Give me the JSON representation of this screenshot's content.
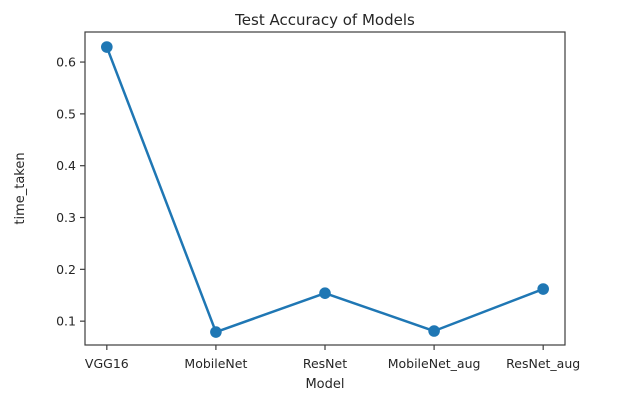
{
  "chart_data": {
    "type": "line",
    "title": "Test Accuracy of Models",
    "xlabel": "Model",
    "ylabel": "time_taken",
    "categories": [
      "VGG16",
      "MobileNet",
      "ResNet",
      "MobileNet_aug",
      "ResNet_aug"
    ],
    "series": [
      {
        "name": "time_taken",
        "values": [
          0.629,
          0.079,
          0.154,
          0.081,
          0.162
        ]
      }
    ],
    "yticks": [
      0.1,
      0.2,
      0.3,
      0.4,
      0.5,
      0.6
    ],
    "ylim": [
      0.054,
      0.658
    ],
    "grid": false,
    "legend_position": "none",
    "line_color": "#1f77b4",
    "marker": "circle"
  }
}
